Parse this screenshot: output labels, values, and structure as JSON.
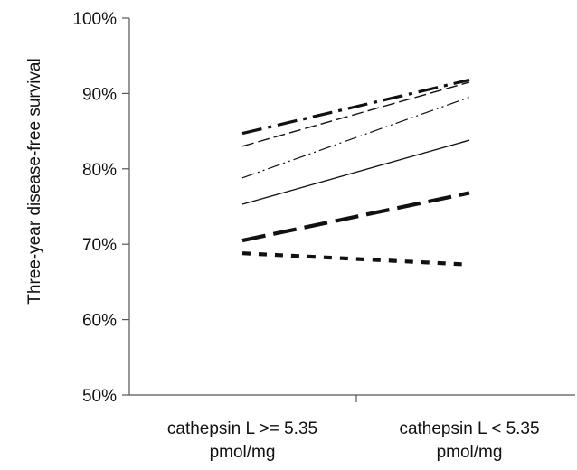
{
  "chart_data": {
    "type": "line",
    "title": "",
    "xlabel": "",
    "ylabel": "Three-year disease-free survival",
    "categories": [
      [
        "cathepsin L >= 5.35",
        "pmol/mg"
      ],
      [
        "cathepsin L < 5.35",
        "pmol/mg"
      ]
    ],
    "ylim": [
      50,
      100
    ],
    "yticks": [
      50,
      60,
      70,
      80,
      90,
      100
    ],
    "ytick_labels": [
      "50%",
      "60%",
      "70%",
      "80%",
      "90%",
      "100%"
    ],
    "grid": false,
    "legend": "none",
    "series": [
      {
        "values": [
          84.7,
          91.8
        ],
        "style": "dash-dot-heavy"
      },
      {
        "values": [
          83.0,
          91.5
        ],
        "style": "dashed-thin"
      },
      {
        "values": [
          78.8,
          89.5
        ],
        "style": "dash-dot-dot-thin"
      },
      {
        "values": [
          75.3,
          83.8
        ],
        "style": "solid-thin"
      },
      {
        "values": [
          70.5,
          76.8
        ],
        "style": "long-dash-heavy"
      },
      {
        "values": [
          68.8,
          67.3
        ],
        "style": "short-dash-heavy"
      }
    ],
    "colors": {
      "lines": "#111111",
      "axis": "#555555"
    }
  }
}
